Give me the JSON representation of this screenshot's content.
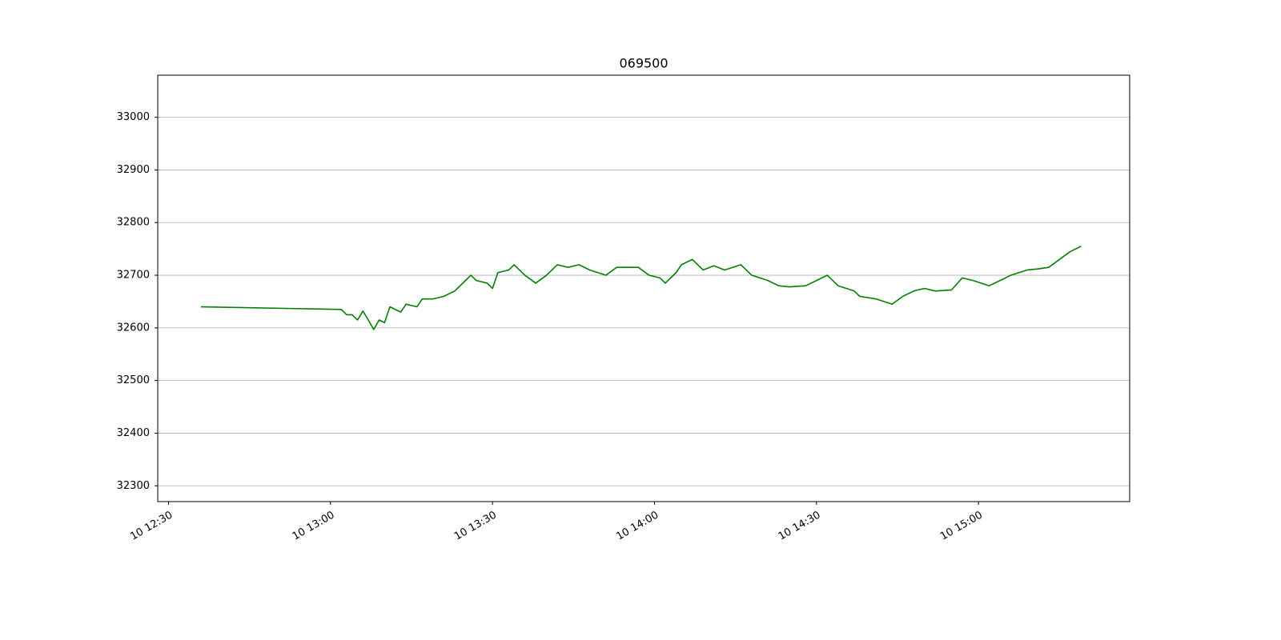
{
  "chart_data": {
    "type": "line",
    "title": "069500",
    "x": [
      "10 12:36",
      "10 13:02",
      "10 13:03",
      "10 13:04",
      "10 13:05",
      "10 13:06",
      "10 13:07",
      "10 13:08",
      "10 13:09",
      "10 13:10",
      "10 13:11",
      "10 13:13",
      "10 13:14",
      "10 13:16",
      "10 13:17",
      "10 13:19",
      "10 13:21",
      "10 13:23",
      "10 13:25",
      "10 13:26",
      "10 13:27",
      "10 13:29",
      "10 13:30",
      "10 13:31",
      "10 13:33",
      "10 13:34",
      "10 13:36",
      "10 13:38",
      "10 13:40",
      "10 13:42",
      "10 13:44",
      "10 13:46",
      "10 13:48",
      "10 13:51",
      "10 13:53",
      "10 13:57",
      "10 13:59",
      "10 14:01",
      "10 14:02",
      "10 14:04",
      "10 14:05",
      "10 14:07",
      "10 14:09",
      "10 14:11",
      "10 14:13",
      "10 14:16",
      "10 14:18",
      "10 14:21",
      "10 14:23",
      "10 14:25",
      "10 14:28",
      "10 14:30",
      "10 14:32",
      "10 14:34",
      "10 14:37",
      "10 14:38",
      "10 14:41",
      "10 14:44",
      "10 14:46",
      "10 14:48",
      "10 14:50",
      "10 14:52",
      "10 14:55",
      "10 14:57",
      "10 14:59",
      "10 15:02",
      "10 15:04",
      "10 15:06",
      "10 15:09",
      "10 15:11",
      "10 15:13",
      "10 15:15",
      "10 15:17",
      "10 15:19"
    ],
    "series": [
      {
        "name": "069500",
        "color": "#008000",
        "values": [
          32640,
          32635,
          32625,
          32625,
          32615,
          32632,
          32615,
          32597,
          32615,
          32610,
          32640,
          32630,
          32645,
          32640,
          32655,
          32655,
          32660,
          32670,
          32690,
          32700,
          32690,
          32685,
          32675,
          32705,
          32710,
          32720,
          32700,
          32685,
          32700,
          32720,
          32715,
          32720,
          32710,
          32700,
          32715,
          32715,
          32700,
          32695,
          32685,
          32705,
          32720,
          32730,
          32710,
          32718,
          32710,
          32720,
          32700,
          32690,
          32680,
          32678,
          32680,
          32690,
          32700,
          32680,
          32670,
          32660,
          32655,
          32645,
          32660,
          32670,
          32675,
          32670,
          32672,
          32695,
          32690,
          32680,
          32690,
          32700,
          32710,
          32712,
          32715,
          32730,
          32745,
          32755
        ]
      }
    ],
    "xlim": [
      "10 12:28",
      "10 15:28"
    ],
    "xticks": [
      "10 12:30",
      "10 13:00",
      "10 13:30",
      "10 14:00",
      "10 14:30",
      "10 15:00"
    ],
    "ylim": [
      32270,
      33080
    ],
    "yticks": [
      32300,
      32400,
      32500,
      32600,
      32700,
      32800,
      32900,
      33000
    ],
    "grid": "y"
  }
}
